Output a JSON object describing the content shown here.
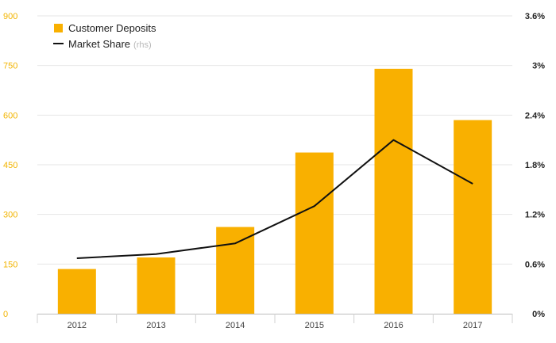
{
  "chart_data": {
    "type": "bar",
    "categories": [
      "2012",
      "2013",
      "2014",
      "2015",
      "2016",
      "2017"
    ],
    "series": [
      {
        "name": "Customer Deposits",
        "type": "bar",
        "axis": "left",
        "color": "#f9b000",
        "values": [
          135,
          170,
          262,
          487,
          740,
          585
        ]
      },
      {
        "name": "Market Share",
        "name_suffix": "(rhs)",
        "type": "line",
        "axis": "right",
        "color": "#111111",
        "values": [
          0.67,
          0.72,
          0.85,
          1.3,
          2.1,
          1.57
        ]
      }
    ],
    "y_left": {
      "min": 0,
      "max": 900,
      "ticks": [
        "0",
        "150",
        "300",
        "450",
        "600",
        "750",
        "900"
      ],
      "tick_color": "#f2b400"
    },
    "y_right": {
      "min": 0,
      "max": 3.6,
      "ticks": [
        "0%",
        "0.6%",
        "1.2%",
        "1.8%",
        "2.4%",
        "3%",
        "3.6%"
      ]
    },
    "grid": true,
    "legend_position": "top-left"
  }
}
